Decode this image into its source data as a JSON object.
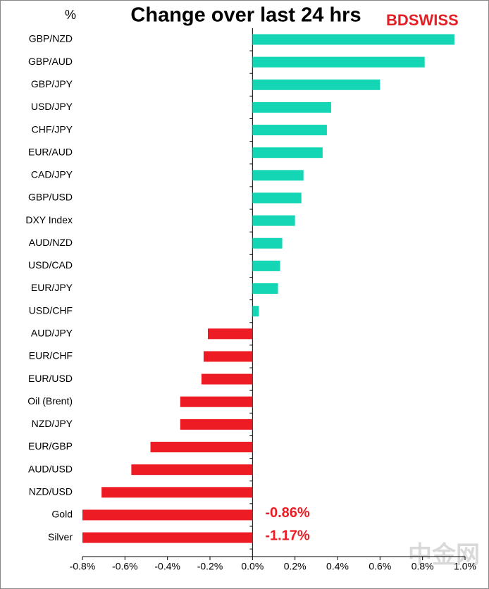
{
  "chart_data": {
    "type": "bar",
    "orientation": "horizontal",
    "title": "Change over last 24 hrs",
    "unit_label": "%",
    "logo": "BDSWISS",
    "watermark": "中金网",
    "categories": [
      "GBP/NZD",
      "GBP/AUD",
      "GBP/JPY",
      "USD/JPY",
      "CHF/JPY",
      "EUR/AUD",
      "CAD/JPY",
      "GBP/USD",
      "DXY Index",
      "AUD/NZD",
      "USD/CAD",
      "EUR/JPY",
      "USD/CHF",
      "AUD/JPY",
      "EUR/CHF",
      "EUR/USD",
      "Oil (Brent)",
      "NZD/JPY",
      "EUR/GBP",
      "AUD/USD",
      "NZD/USD",
      "Gold",
      "Silver"
    ],
    "values": [
      0.95,
      0.81,
      0.6,
      0.37,
      0.35,
      0.33,
      0.24,
      0.23,
      0.2,
      0.14,
      0.13,
      0.12,
      0.03,
      -0.21,
      -0.23,
      -0.24,
      -0.34,
      -0.34,
      -0.48,
      -0.57,
      -0.71,
      -0.86,
      -1.17
    ],
    "value_labels": [
      null,
      null,
      null,
      null,
      null,
      null,
      null,
      null,
      null,
      null,
      null,
      null,
      null,
      null,
      null,
      null,
      null,
      null,
      null,
      null,
      null,
      "-0.86%",
      "-1.17%"
    ],
    "positive_color": "#14d6b4",
    "negative_color": "#ed1c24",
    "xlim": [
      -0.8,
      1.0
    ],
    "xticks": [
      {
        "value": -0.8,
        "label": "-0.8%"
      },
      {
        "value": -0.6,
        "label": "-0.6%"
      },
      {
        "value": -0.4,
        "label": "-0.4%"
      },
      {
        "value": -0.2,
        "label": "-0.2%"
      },
      {
        "value": 0,
        "label": "0.0%"
      },
      {
        "value": 0.2,
        "label": "0.2%"
      },
      {
        "value": 0.4,
        "label": "0.4%"
      },
      {
        "value": 0.6,
        "label": "0.6%"
      },
      {
        "value": 0.8,
        "label": "0.8%"
      },
      {
        "value": 1.0,
        "label": "1.0%"
      }
    ],
    "grid": false
  }
}
